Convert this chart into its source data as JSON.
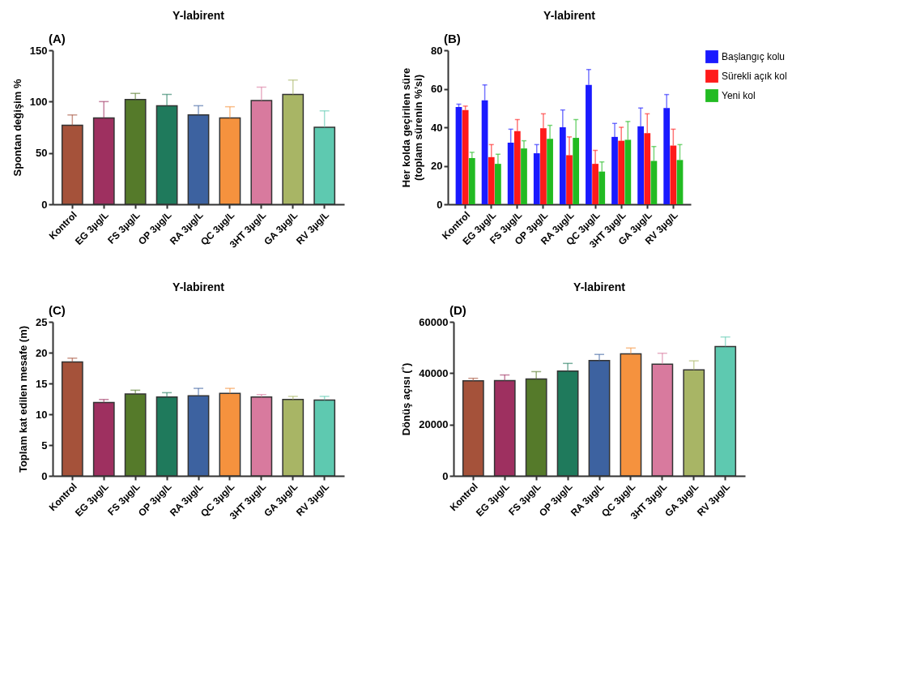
{
  "chart_data": [
    {
      "type": "bar",
      "title": "Y-labirent",
      "ylabel": "Spontan değişim %",
      "annotations": [
        "(A)"
      ],
      "categories": [
        "Kontrol",
        "EG 3µg/L",
        "FS 3µg/L",
        "OP 3µg/L",
        "RA 3µg/L",
        "QC 3µg/L",
        "3HT 3µg/L",
        "GA 3µg/L",
        "RV 3µg/L"
      ],
      "values": [
        77,
        84,
        102,
        96,
        87,
        84,
        101,
        107,
        75
      ],
      "errors": [
        [
          77,
          87
        ],
        [
          84,
          100
        ],
        [
          102,
          108
        ],
        [
          96,
          107
        ],
        [
          87,
          96
        ],
        [
          84,
          95
        ],
        [
          101,
          114
        ],
        [
          107,
          121
        ],
        [
          75,
          91
        ]
      ],
      "colors": [
        "#a5523a",
        "#9e3060",
        "#557a2a",
        "#1f7a5c",
        "#3d62a0",
        "#f5923e",
        "#d87a9e",
        "#a8b565",
        "#5ec9b0"
      ],
      "ylim": [
        0,
        150
      ],
      "yticks": [
        0,
        50,
        100,
        150
      ],
      "grid": false
    },
    {
      "type": "bar",
      "title": "Y-labirent",
      "ylabel": "Her kolda geçirilen süre\n(toplam sürenin %’si)",
      "annotations": [
        "(B)"
      ],
      "categories": [
        "Kontrol",
        "EG 3µg/L",
        "FS 3µg/L",
        "OP 3µg/L",
        "RA 3µg/L",
        "QC 3µg/L",
        "3HT 3µg/L",
        "GA 3µg/L",
        "RV 3µg/L"
      ],
      "series": [
        {
          "name": "Başlangıç kolu",
          "color": "#1a1aff",
          "values": [
            50.5,
            54,
            32,
            26.5,
            40,
            62,
            35,
            40.5,
            50
          ],
          "errors": [
            [
              50.5,
              52
            ],
            [
              54,
              62
            ],
            [
              32,
              39
            ],
            [
              26.5,
              31
            ],
            [
              40,
              49
            ],
            [
              62,
              70
            ],
            [
              35,
              42
            ],
            [
              40.5,
              50
            ],
            [
              50,
              57
            ]
          ]
        },
        {
          "name": "Sürekli açık kol",
          "color": "#ff1a1a",
          "values": [
            49,
            24.5,
            38,
            39.5,
            25.5,
            21,
            33,
            37,
            30.5
          ],
          "errors": [
            [
              49,
              51
            ],
            [
              24.5,
              31
            ],
            [
              38,
              44
            ],
            [
              39.5,
              47
            ],
            [
              25.5,
              35
            ],
            [
              21,
              28
            ],
            [
              33,
              40
            ],
            [
              37,
              47
            ],
            [
              30.5,
              39
            ]
          ]
        },
        {
          "name": "Yeni kol",
          "color": "#22bb22",
          "values": [
            24,
            21,
            29,
            34,
            34.5,
            17,
            33.5,
            22.5,
            23
          ],
          "errors": [
            [
              24,
              27
            ],
            [
              21,
              26
            ],
            [
              29,
              33
            ],
            [
              34,
              41
            ],
            [
              34.5,
              44
            ],
            [
              17,
              22
            ],
            [
              33.5,
              43
            ],
            [
              22.5,
              30
            ],
            [
              23,
              31
            ]
          ]
        }
      ],
      "ylim": [
        0,
        80
      ],
      "yticks": [
        0,
        20,
        40,
        60,
        80
      ],
      "grid": false,
      "legend": "right"
    },
    {
      "type": "bar",
      "title": "Y-labirent",
      "ylabel": "Toplam kat edilen mesafe (m)",
      "annotations": [
        "(C)"
      ],
      "categories": [
        "Kontrol",
        "EG 3µg/L",
        "FS 3µg/L",
        "OP 3µg/L",
        "RA 3µg/L",
        "QC 3µg/L",
        "3HT 3µg/L",
        "GA 3µg/L",
        "RV 3µg/L"
      ],
      "values": [
        18.5,
        11.9,
        13.3,
        12.8,
        13,
        13.4,
        12.8,
        12.4,
        12.3
      ],
      "errors": [
        [
          18.5,
          19.1
        ],
        [
          11.9,
          12.4
        ],
        [
          13.3,
          13.9
        ],
        [
          12.8,
          13.5
        ],
        [
          13,
          14.2
        ],
        [
          13.4,
          14.2
        ],
        [
          12.8,
          13.2
        ],
        [
          12.4,
          12.9
        ],
        [
          12.3,
          12.9
        ]
      ],
      "colors": [
        "#a5523a",
        "#9e3060",
        "#557a2a",
        "#1f7a5c",
        "#3d62a0",
        "#f5923e",
        "#d87a9e",
        "#a8b565",
        "#5ec9b0"
      ],
      "ylim": [
        0,
        25
      ],
      "yticks": [
        0,
        5,
        10,
        15,
        20,
        25
      ],
      "grid": false
    },
    {
      "type": "bar",
      "title": "Y-labirent",
      "ylabel": "Dönüş açısı (˚)",
      "annotations": [
        "(D)"
      ],
      "categories": [
        "Kontrol",
        "EG 3µg/L",
        "FS 3µg/L",
        "OP 3µg/L",
        "RA 3µg/L",
        "QC 3µg/L",
        "3HT 3µg/L",
        "GA 3µg/L",
        "RV 3µg/L"
      ],
      "values": [
        37000,
        37100,
        37700,
        40800,
        44900,
        47500,
        43500,
        41300,
        50400
      ],
      "errors": [
        [
          37000,
          38000
        ],
        [
          37100,
          39300
        ],
        [
          37700,
          40600
        ],
        [
          40800,
          43800
        ],
        [
          44900,
          47300
        ],
        [
          47500,
          49800
        ],
        [
          43500,
          47800
        ],
        [
          41300,
          44800
        ],
        [
          50400,
          54100
        ]
      ],
      "colors": [
        "#a5523a",
        "#9e3060",
        "#557a2a",
        "#1f7a5c",
        "#3d62a0",
        "#f5923e",
        "#d87a9e",
        "#a8b565",
        "#5ec9b0"
      ],
      "ylim": [
        0,
        60000
      ],
      "yticks": [
        0,
        20000,
        40000,
        60000
      ],
      "grid": false
    }
  ]
}
